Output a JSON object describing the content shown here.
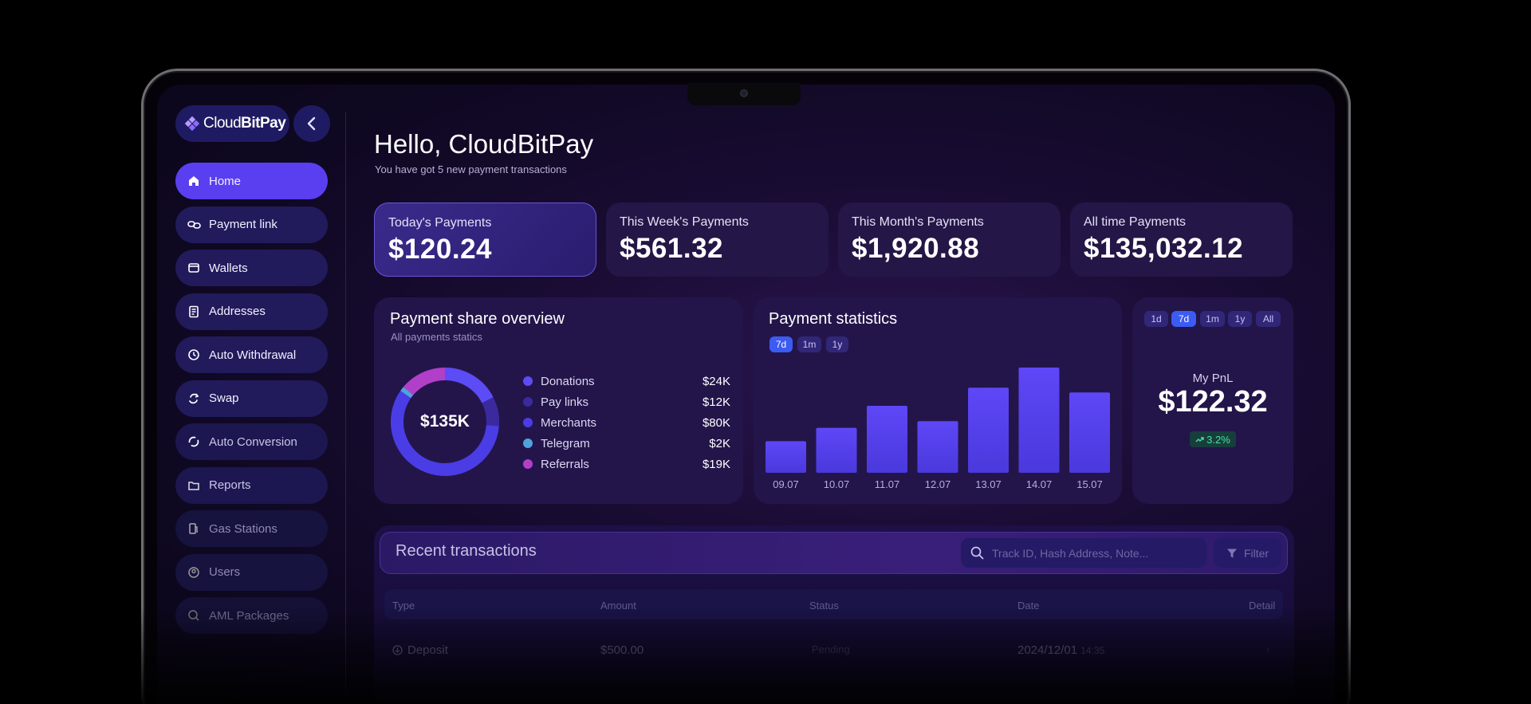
{
  "brand": {
    "logo_light": "Cloud",
    "logo_bold": "BitPay",
    "back_icon": "chevron-left-icon"
  },
  "sidebar": {
    "items": [
      {
        "label": "Home",
        "icon": "home-icon"
      },
      {
        "label": "Payment link",
        "icon": "link-icon"
      },
      {
        "label": "Wallets",
        "icon": "wallet-icon"
      },
      {
        "label": "Addresses",
        "icon": "address-icon"
      },
      {
        "label": "Auto Withdrawal",
        "icon": "withdrawal-icon"
      },
      {
        "label": "Swap",
        "icon": "swap-icon"
      },
      {
        "label": "Auto Conversion",
        "icon": "conversion-icon"
      },
      {
        "label": "Reports",
        "icon": "reports-icon"
      },
      {
        "label": "Gas Stations",
        "icon": "gas-station-icon"
      },
      {
        "label": "Users",
        "icon": "user-icon"
      },
      {
        "label": "AML Packages",
        "icon": "aml-icon"
      }
    ]
  },
  "header": {
    "greeting": "Hello, CloudBitPay",
    "subtitle": "You have got 5 new payment transactions"
  },
  "stats": [
    {
      "label": "Today's Payments",
      "value": "$120.24"
    },
    {
      "label": "This Week's Payments",
      "value": "$561.32"
    },
    {
      "label": "This Month's Payments",
      "value": "$1,920.88"
    },
    {
      "label": "All time Payments",
      "value": "$135,032.12"
    }
  ],
  "share": {
    "title": "Payment share overview",
    "subtitle": "All payments statics",
    "total": "$135K",
    "legend": [
      {
        "name": "Donations",
        "amount": "$24K",
        "color": "#5b4cf5"
      },
      {
        "name": "Pay links",
        "amount": "$12K",
        "color": "#3b2a9e"
      },
      {
        "name": "Merchants",
        "amount": "$80K",
        "color": "#4a3de6"
      },
      {
        "name": "Telegram",
        "amount": "$2K",
        "color": "#4fa3dc"
      },
      {
        "name": "Referrals",
        "amount": "$19K",
        "color": "#b13fc8"
      }
    ]
  },
  "statistics": {
    "title": "Payment statistics",
    "ranges": [
      "7d",
      "1m",
      "1y"
    ],
    "active_range": "7d"
  },
  "chart_data": {
    "type": "bar",
    "categories": [
      "09.07",
      "10.07",
      "11.07",
      "12.07",
      "13.07",
      "14.07",
      "15.07"
    ],
    "values": [
      33,
      47,
      70,
      54,
      89,
      110,
      84
    ]
  },
  "pnl": {
    "ranges": [
      "1d",
      "7d",
      "1m",
      "1y",
      "All"
    ],
    "active_range": "7d",
    "label": "My PnL",
    "value": "$122.32",
    "change": "3.2%",
    "change_color": "#48e0a0"
  },
  "transactions": {
    "title": "Recent transactions",
    "search_placeholder": "Track ID, Hash Address, Note...",
    "filter_label": "Filter",
    "columns": [
      "Type",
      "Amount",
      "Status",
      "Date",
      "Detail"
    ],
    "rows": [
      {
        "type": "Deposit",
        "amount": "$500.00",
        "status": "Pending",
        "date": "2024/12/01",
        "time": "14:35"
      }
    ]
  }
}
